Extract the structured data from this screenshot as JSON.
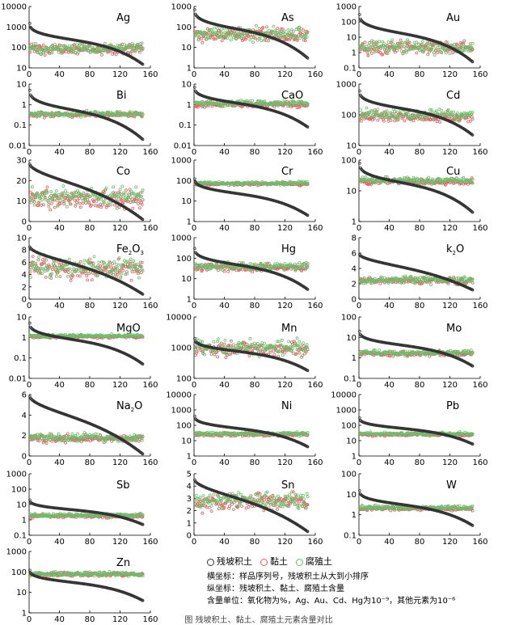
{
  "legend": {
    "items": [
      {
        "label": "残坡积土",
        "color": "#333333"
      },
      {
        "label": "黏土",
        "color": "#e06060"
      },
      {
        "label": "腐殖土",
        "color": "#6cbf6c"
      }
    ],
    "lines": [
      "横坐标：样品序列号，残坡积土从大到小排序",
      "纵坐标：残坡积土、黏土、腐殖土含量",
      "含量单位：氧化物为%，Ag、Au、Cd、Hg为10⁻⁹，其他元素为10⁻⁶"
    ],
    "caption": "图 残坡积土、黏土、腐殖土元素含量对比"
  },
  "chart_data": [
    {
      "type": "scatter",
      "title": "Ag",
      "log": true,
      "yticks": [
        "10",
        "100",
        "1000",
        "10000"
      ],
      "ylim": [
        10,
        10000
      ],
      "xlim": [
        0,
        160
      ],
      "xticks": [
        0,
        40,
        80,
        120,
        160
      ],
      "series": [
        {
          "values": {
            "start": 1500,
            "end": 15
          }
        },
        {
          "values": {
            "mean": 80,
            "spread": 2.2
          }
        },
        {
          "values": {
            "mean": 90,
            "spread": 2.2
          }
        }
      ]
    },
    {
      "type": "scatter",
      "title": "As",
      "log": true,
      "yticks": [
        "1",
        "10",
        "100",
        "1000"
      ],
      "ylim": [
        1,
        1000
      ],
      "xlim": [
        0,
        160
      ],
      "xticks": [
        0,
        40,
        80,
        120,
        160
      ],
      "series": [
        {
          "values": {
            "start": 700,
            "end": 3
          }
        },
        {
          "values": {
            "mean": 40,
            "spread": 3
          }
        },
        {
          "values": {
            "mean": 45,
            "spread": 3
          }
        }
      ]
    },
    {
      "type": "scatter",
      "title": "Au",
      "log": true,
      "yticks": [
        "0.1",
        "1",
        "10",
        "100",
        "1000"
      ],
      "ylim": [
        0.1,
        1000
      ],
      "xlim": [
        0,
        160
      ],
      "xticks": [
        0,
        40,
        80,
        120,
        160
      ],
      "series": [
        {
          "values": {
            "start": 300,
            "end": 0.25
          }
        },
        {
          "values": {
            "mean": 2,
            "spread": 4
          }
        },
        {
          "values": {
            "mean": 2.2,
            "spread": 4
          }
        }
      ]
    },
    {
      "type": "scatter",
      "title": "Bi",
      "log": true,
      "yticks": [
        "0.01",
        "0.1",
        "1",
        "10"
      ],
      "ylim": [
        0.01,
        10
      ],
      "xlim": [
        0,
        160
      ],
      "xticks": [
        0,
        40,
        80,
        120,
        160
      ],
      "series": [
        {
          "values": {
            "start": 5,
            "end": 0.02
          }
        },
        {
          "values": {
            "mean": 0.32,
            "spread": 1.5
          }
        },
        {
          "values": {
            "mean": 0.35,
            "spread": 1.5
          }
        }
      ]
    },
    {
      "type": "scatter",
      "title": "CaO",
      "log": true,
      "yticks": [
        "0.01",
        "0.1",
        "1",
        "10"
      ],
      "ylim": [
        0.01,
        10
      ],
      "xlim": [
        0,
        160
      ],
      "xticks": [
        0,
        40,
        80,
        120,
        160
      ],
      "series": [
        {
          "values": {
            "start": 7,
            "end": 0.08
          }
        },
        {
          "values": {
            "mean": 1,
            "spread": 1.6
          }
        },
        {
          "values": {
            "mean": 1.2,
            "spread": 1.6
          }
        }
      ]
    },
    {
      "type": "scatter",
      "title": "Cd",
      "log": true,
      "yticks": [
        "10",
        "100",
        "1000"
      ],
      "ylim": [
        10,
        1000
      ],
      "xlim": [
        0,
        160
      ],
      "xticks": [
        0,
        40,
        80,
        120,
        160
      ],
      "series": [
        {
          "values": {
            "start": 600,
            "end": 22
          }
        },
        {
          "values": {
            "mean": 85,
            "spread": 1.8
          }
        },
        {
          "values": {
            "mean": 100,
            "spread": 1.8
          }
        }
      ]
    },
    {
      "type": "scatter",
      "title": "Co",
      "log": false,
      "yticks": [
        "0",
        "10",
        "20",
        "30"
      ],
      "ylim": [
        0,
        30
      ],
      "xlim": [
        0,
        160
      ],
      "xticks": [
        0,
        40,
        80,
        120,
        160
      ],
      "series": [
        {
          "values": {
            "start": 28,
            "end": 1
          }
        },
        {
          "values": {
            "mean": 11,
            "spread": 4
          }
        },
        {
          "values": {
            "mean": 12,
            "spread": 4
          }
        }
      ]
    },
    {
      "type": "scatter",
      "title": "Cr",
      "log": true,
      "yticks": [
        "1",
        "10",
        "100",
        "1000"
      ],
      "ylim": [
        1,
        1000
      ],
      "xlim": [
        0,
        160
      ],
      "xticks": [
        0,
        40,
        80,
        120,
        160
      ],
      "series": [
        {
          "values": {
            "start": 120,
            "end": 2
          }
        },
        {
          "values": {
            "mean": 70,
            "spread": 1.3
          }
        },
        {
          "values": {
            "mean": 75,
            "spread": 1.3
          }
        }
      ]
    },
    {
      "type": "scatter",
      "title": "Cu",
      "log": true,
      "yticks": [
        "1",
        "10",
        "100"
      ],
      "ylim": [
        1,
        100
      ],
      "xlim": [
        0,
        160
      ],
      "xticks": [
        0,
        40,
        80,
        120,
        160
      ],
      "series": [
        {
          "values": {
            "start": 80,
            "end": 2
          }
        },
        {
          "values": {
            "mean": 20,
            "spread": 1.4
          }
        },
        {
          "values": {
            "mean": 22,
            "spread": 1.4
          }
        }
      ]
    },
    {
      "type": "scatter",
      "title": "Fe2O3",
      "log": false,
      "yticks": [
        "0",
        "2",
        "4",
        "6",
        "8",
        "10"
      ],
      "ylim": [
        0,
        10
      ],
      "xlim": [
        0,
        160
      ],
      "xticks": [
        0,
        40,
        80,
        120,
        160
      ],
      "series": [
        {
          "values": {
            "start": 8.5,
            "end": 0.8
          }
        },
        {
          "values": {
            "mean": 5,
            "spread": 1.5
          }
        },
        {
          "values": {
            "mean": 5.2,
            "spread": 1.5
          }
        }
      ]
    },
    {
      "type": "scatter",
      "title": "Hg",
      "log": true,
      "yticks": [
        "1",
        "10",
        "100",
        "1000"
      ],
      "ylim": [
        1,
        1000
      ],
      "xlim": [
        0,
        160
      ],
      "xticks": [
        0,
        40,
        80,
        120,
        160
      ],
      "series": [
        {
          "values": {
            "start": 300,
            "end": 3
          }
        },
        {
          "values": {
            "mean": 35,
            "spread": 1.8
          }
        },
        {
          "values": {
            "mean": 40,
            "spread": 1.8
          }
        }
      ]
    },
    {
      "type": "scatter",
      "title": "k2O",
      "log": false,
      "yticks": [
        "0",
        "2",
        "4",
        "6",
        "8"
      ],
      "ylim": [
        0,
        8
      ],
      "xlim": [
        0,
        160
      ],
      "xticks": [
        0,
        40,
        80,
        120,
        160
      ],
      "series": [
        {
          "values": {
            "start": 5.8,
            "end": 1.2
          }
        },
        {
          "values": {
            "mean": 2.4,
            "spread": 0.4
          }
        },
        {
          "values": {
            "mean": 2.5,
            "spread": 0.4
          }
        }
      ]
    },
    {
      "type": "scatter",
      "title": "MgO",
      "log": true,
      "yticks": [
        "0.01",
        "0.1",
        "1",
        "10"
      ],
      "ylim": [
        0.01,
        10
      ],
      "xlim": [
        0,
        160
      ],
      "xticks": [
        0,
        40,
        80,
        120,
        160
      ],
      "series": [
        {
          "values": {
            "start": 5,
            "end": 0.05
          }
        },
        {
          "values": {
            "mean": 1.1,
            "spread": 1.3
          }
        },
        {
          "values": {
            "mean": 1.2,
            "spread": 1.3
          }
        }
      ]
    },
    {
      "type": "scatter",
      "title": "Mn",
      "log": true,
      "yticks": [
        "100",
        "1000",
        "10000"
      ],
      "ylim": [
        100,
        10000
      ],
      "xlim": [
        0,
        160
      ],
      "xticks": [
        0,
        40,
        80,
        120,
        160
      ],
      "series": [
        {
          "values": {
            "start": 2000,
            "end": 180
          }
        },
        {
          "values": {
            "mean": 900,
            "spread": 2.2
          }
        },
        {
          "values": {
            "mean": 1000,
            "spread": 2.2
          }
        }
      ]
    },
    {
      "type": "scatter",
      "title": "Mo",
      "log": true,
      "yticks": [
        "0.1",
        "1",
        "10",
        "100"
      ],
      "ylim": [
        0.1,
        100
      ],
      "xlim": [
        0,
        160
      ],
      "xticks": [
        0,
        40,
        80,
        120,
        160
      ],
      "series": [
        {
          "values": {
            "start": 20,
            "end": 0.4
          }
        },
        {
          "values": {
            "mean": 1.6,
            "spread": 1.5
          }
        },
        {
          "values": {
            "mean": 1.8,
            "spread": 1.5
          }
        }
      ]
    },
    {
      "type": "scatter",
      "title": "Na2O",
      "log": false,
      "yticks": [
        "0",
        "2",
        "4",
        "6"
      ],
      "ylim": [
        0,
        6
      ],
      "xlim": [
        0,
        160
      ],
      "xticks": [
        0,
        40,
        80,
        120,
        160
      ],
      "series": [
        {
          "values": {
            "start": 5.8,
            "end": 0.2
          }
        },
        {
          "values": {
            "mean": 1.7,
            "spread": 0.35
          }
        },
        {
          "values": {
            "mean": 1.8,
            "spread": 0.35
          }
        }
      ]
    },
    {
      "type": "scatter",
      "title": "Ni",
      "log": true,
      "yticks": [
        "1",
        "10",
        "100",
        "1000",
        "10000"
      ],
      "ylim": [
        1,
        10000
      ],
      "xlim": [
        0,
        160
      ],
      "xticks": [
        0,
        40,
        80,
        120,
        160
      ],
      "series": [
        {
          "values": {
            "start": 400,
            "end": 4
          }
        },
        {
          "values": {
            "mean": 25,
            "spread": 1.5
          }
        },
        {
          "values": {
            "mean": 28,
            "spread": 1.5
          }
        }
      ]
    },
    {
      "type": "scatter",
      "title": "Pb",
      "log": true,
      "yticks": [
        "1",
        "10",
        "100",
        "1000",
        "10000"
      ],
      "ylim": [
        1,
        10000
      ],
      "xlim": [
        0,
        160
      ],
      "xticks": [
        0,
        40,
        80,
        120,
        160
      ],
      "series": [
        {
          "values": {
            "start": 300,
            "end": 6
          }
        },
        {
          "values": {
            "mean": 25,
            "spread": 1.4
          }
        },
        {
          "values": {
            "mean": 28,
            "spread": 1.4
          }
        }
      ]
    },
    {
      "type": "scatter",
      "title": "Sb",
      "log": true,
      "yticks": [
        "0.1",
        "1",
        "10",
        "100",
        "1000"
      ],
      "ylim": [
        0.1,
        1000
      ],
      "xlim": [
        0,
        160
      ],
      "xticks": [
        0,
        40,
        80,
        120,
        160
      ],
      "series": [
        {
          "values": {
            "start": 20,
            "end": 0.5
          }
        },
        {
          "values": {
            "mean": 1.8,
            "spread": 1.5
          }
        },
        {
          "values": {
            "mean": 2,
            "spread": 1.5
          }
        }
      ]
    },
    {
      "type": "scatter",
      "title": "Sn",
      "log": false,
      "yticks": [
        "0",
        "1",
        "2",
        "3",
        "4",
        "5"
      ],
      "ylim": [
        0,
        5
      ],
      "xlim": [
        0,
        160
      ],
      "xticks": [
        0,
        40,
        80,
        120,
        160
      ],
      "series": [
        {
          "values": {
            "start": 4.5,
            "end": 0.3
          }
        },
        {
          "values": {
            "mean": 2.7,
            "spread": 0.6
          }
        },
        {
          "values": {
            "mean": 2.8,
            "spread": 0.6
          }
        }
      ]
    },
    {
      "type": "scatter",
      "title": "W",
      "log": true,
      "yticks": [
        "0.1",
        "1",
        "10",
        "100"
      ],
      "ylim": [
        0.1,
        100
      ],
      "xlim": [
        0,
        160
      ],
      "xticks": [
        0,
        40,
        80,
        120,
        160
      ],
      "series": [
        {
          "values": {
            "start": 15,
            "end": 0.3
          }
        },
        {
          "values": {
            "mean": 2,
            "spread": 1.4
          }
        },
        {
          "values": {
            "mean": 2.2,
            "spread": 1.4
          }
        }
      ]
    },
    {
      "type": "scatter",
      "title": "Zn",
      "log": true,
      "yticks": [
        "1",
        "10",
        "100",
        "1000"
      ],
      "ylim": [
        1,
        1000
      ],
      "xlim": [
        0,
        160
      ],
      "xticks": [
        0,
        40,
        80,
        120,
        160
      ],
      "series": [
        {
          "values": {
            "start": 120,
            "end": 4
          }
        },
        {
          "values": {
            "mean": 75,
            "spread": 1.4
          }
        },
        {
          "values": {
            "mean": 80,
            "spread": 1.4
          }
        }
      ]
    }
  ]
}
